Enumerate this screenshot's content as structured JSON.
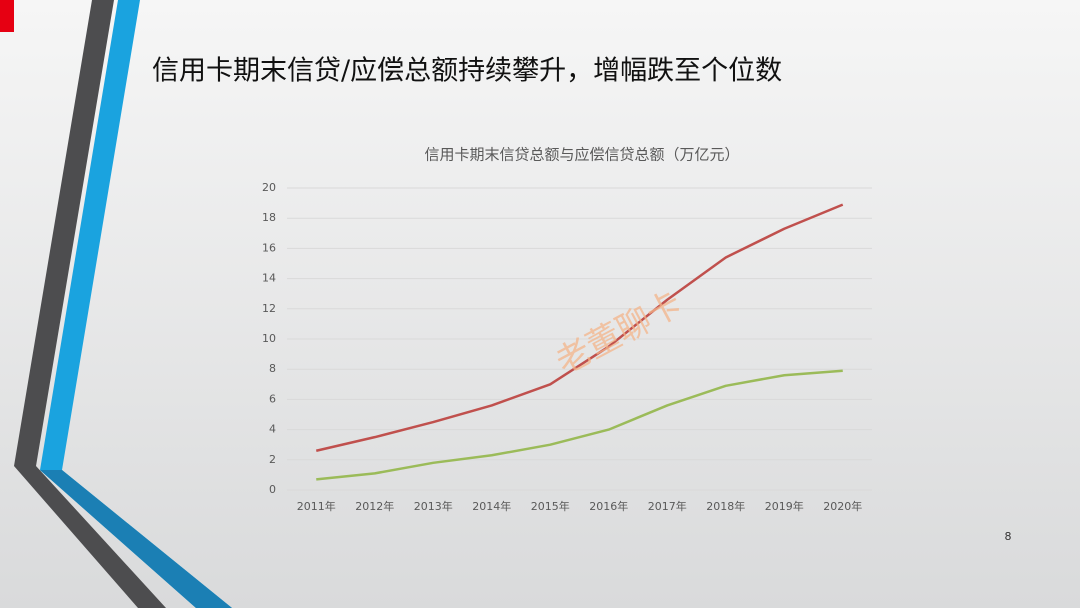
{
  "slide": {
    "title": "信用卡期末信贷/应偿总额持续攀升，增幅跌至个位数",
    "page_number": "8",
    "watermark": "老董聊卡"
  },
  "chart_data": {
    "type": "line",
    "title": "信用卡期末信贷总额与应偿信贷总额（万亿元）",
    "categories": [
      "2011年",
      "2012年",
      "2013年",
      "2014年",
      "2015年",
      "2016年",
      "2017年",
      "2018年",
      "2019年",
      "2020年"
    ],
    "series": [
      {
        "color": "#c0504d",
        "values": [
          2.6,
          3.5,
          4.5,
          5.6,
          7.0,
          9.5,
          12.6,
          15.4,
          17.3,
          18.9
        ]
      },
      {
        "color": "#9bbb59",
        "values": [
          0.7,
          1.1,
          1.8,
          2.3,
          3.0,
          4.0,
          5.6,
          6.9,
          7.6,
          7.9
        ]
      }
    ],
    "ylim": [
      0,
      20
    ],
    "yticks": [
      0,
      2,
      4,
      6,
      8,
      10,
      12,
      14,
      16,
      18,
      20
    ],
    "grid": true
  }
}
